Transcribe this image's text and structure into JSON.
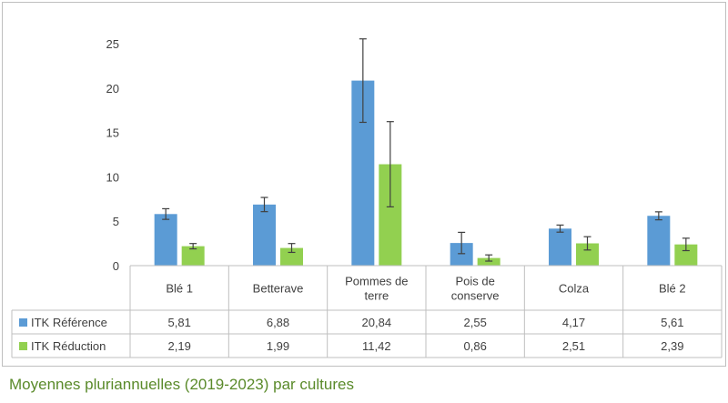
{
  "caption": "Moyennes pluriannuelles (2019-2023) par cultures",
  "chart_data": {
    "type": "bar",
    "categories": [
      "Blé 1",
      "Betterave",
      "Pommes de terre",
      "Pois de conserve",
      "Colza",
      "Blé 2"
    ],
    "category_lines": [
      [
        "Blé 1"
      ],
      [
        "Betterave"
      ],
      [
        "Pommes de",
        "terre"
      ],
      [
        "Pois de",
        "conserve"
      ],
      [
        "Colza"
      ],
      [
        "Blé 2"
      ]
    ],
    "series": [
      {
        "name": "ITK Référence",
        "color": "#5b9bd5",
        "values": [
          5.81,
          6.88,
          20.84,
          2.55,
          4.17,
          5.61
        ],
        "labels": [
          "5,81",
          "6,88",
          "20,84",
          "2,55",
          "4,17",
          "5,61"
        ],
        "error": [
          0.6,
          0.8,
          4.7,
          1.2,
          0.4,
          0.45
        ]
      },
      {
        "name": "ITK Réduction",
        "color": "#92d050",
        "values": [
          2.19,
          1.99,
          11.42,
          0.86,
          2.51,
          2.39
        ],
        "labels": [
          "2,19",
          "1,99",
          "11,42",
          "0,86",
          "2,51",
          "2,39"
        ],
        "error": [
          0.3,
          0.5,
          4.8,
          0.35,
          0.75,
          0.7
        ]
      }
    ],
    "ylim": [
      0,
      25
    ],
    "yticks": [
      0,
      5,
      10,
      15,
      20,
      25
    ],
    "grid": false,
    "legend": "data-table",
    "data_table": true
  }
}
